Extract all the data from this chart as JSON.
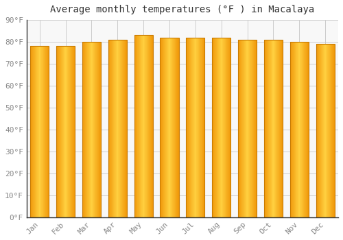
{
  "title": "Average monthly temperatures (°F ) in Macalaya",
  "months": [
    "Jan",
    "Feb",
    "Mar",
    "Apr",
    "May",
    "Jun",
    "Jul",
    "Aug",
    "Sep",
    "Oct",
    "Nov",
    "Dec"
  ],
  "values": [
    78,
    78,
    80,
    81,
    83,
    82,
    82,
    82,
    81,
    81,
    80,
    79
  ],
  "bar_color_center": "#FFD040",
  "bar_color_edge": "#F0980A",
  "bar_outline_color": "#C87A00",
  "background_color": "#FFFFFF",
  "plot_bg_color": "#F8F8F8",
  "grid_color": "#CCCCCC",
  "title_fontsize": 10,
  "tick_fontsize": 8,
  "tick_color": "#888888",
  "ylim": [
    0,
    90
  ],
  "ytick_step": 10,
  "bar_width": 0.72
}
